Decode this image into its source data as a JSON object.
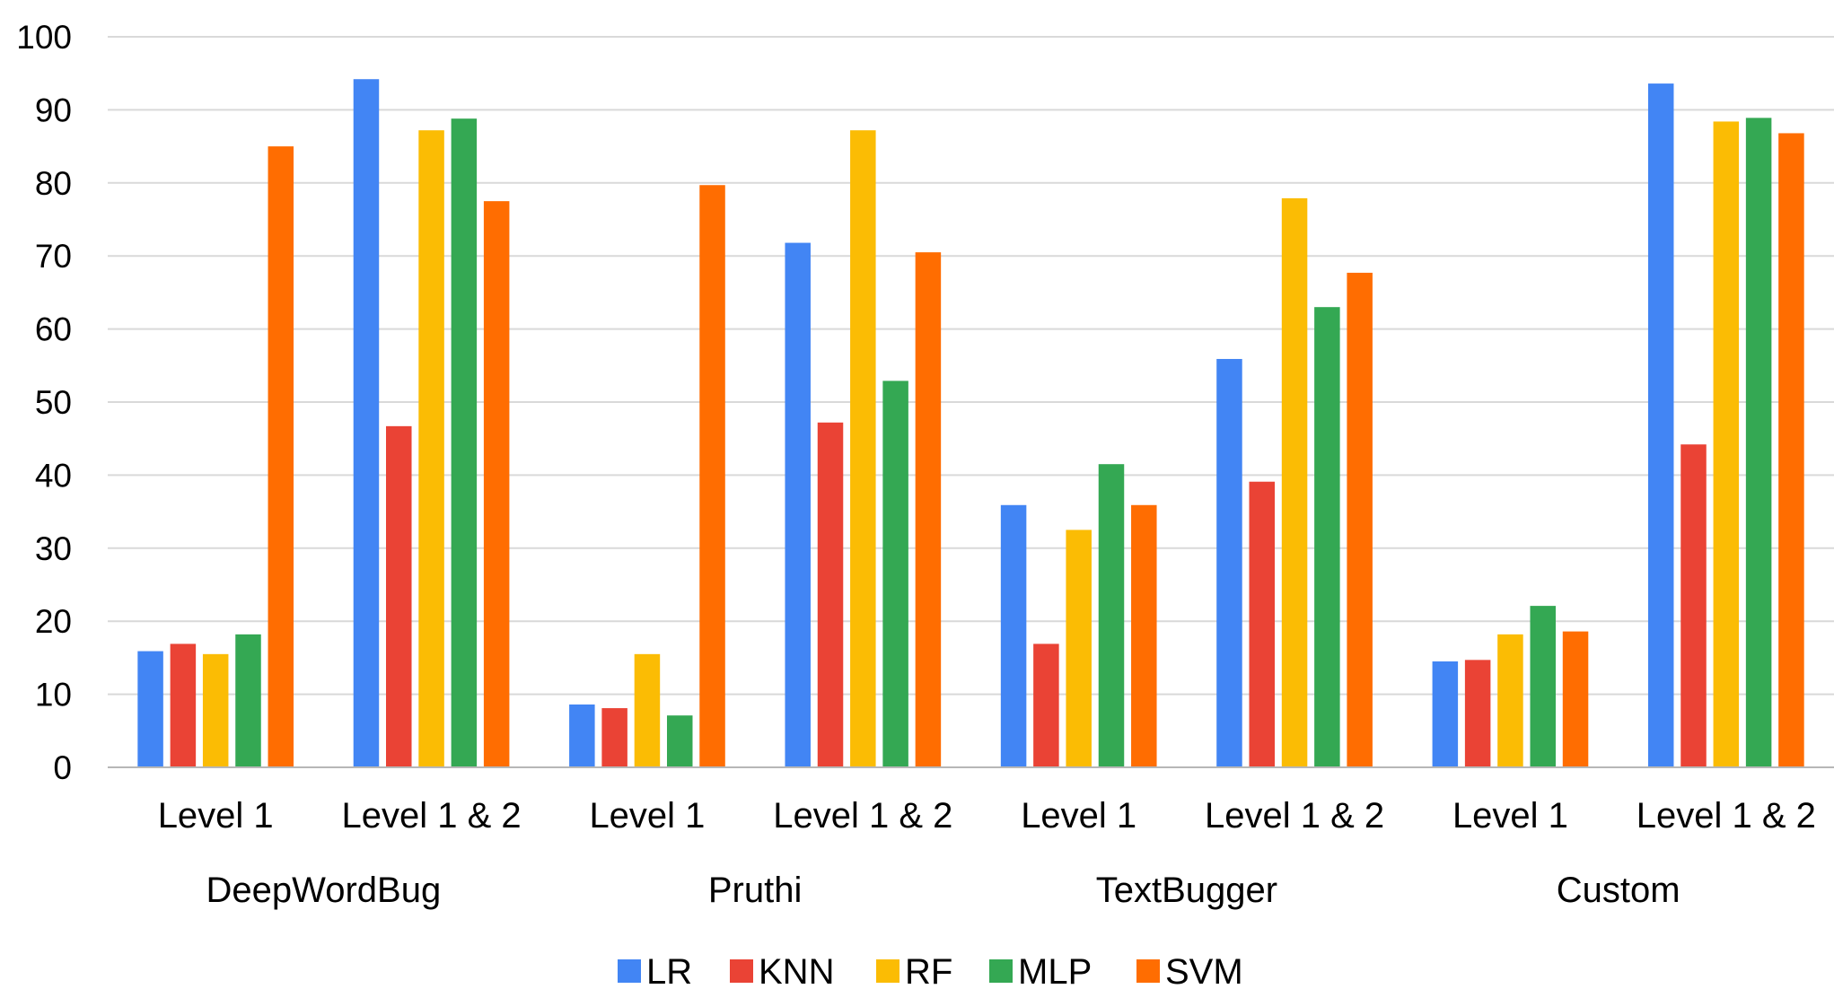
{
  "chart_data": {
    "type": "bar",
    "title": "",
    "xlabel": "",
    "ylabel": "",
    "ylim": [
      0,
      100
    ],
    "yticks": [
      0,
      10,
      20,
      30,
      40,
      50,
      60,
      70,
      80,
      90,
      100
    ],
    "grid": true,
    "legend_position": "bottom",
    "groups": [
      "DeepWordBug",
      "Pruthi",
      "TextBugger",
      "Custom"
    ],
    "categories": [
      "Level 1",
      "Level 1 & 2",
      "Level 1",
      "Level 1 & 2",
      "Level 1",
      "Level 1 & 2",
      "Level 1",
      "Level 1 & 2"
    ],
    "series": [
      {
        "name": "LR",
        "color": "#4285F4",
        "values": [
          15.9,
          94.2,
          8.6,
          71.8,
          35.9,
          55.9,
          14.5,
          93.6
        ]
      },
      {
        "name": "KNN",
        "color": "#EA4335",
        "values": [
          16.9,
          46.7,
          8.1,
          47.2,
          16.9,
          39.1,
          14.7,
          44.2
        ]
      },
      {
        "name": "RF",
        "color": "#FBBC04",
        "values": [
          15.5,
          87.2,
          15.5,
          87.2,
          32.5,
          77.9,
          18.2,
          88.4
        ]
      },
      {
        "name": "MLP",
        "color": "#34A853",
        "values": [
          18.2,
          88.8,
          7.1,
          52.9,
          41.5,
          63.0,
          22.1,
          88.9
        ]
      },
      {
        "name": "SVM",
        "color": "#FF6D01",
        "values": [
          85.0,
          77.5,
          79.7,
          70.5,
          35.9,
          67.7,
          18.6,
          86.8
        ]
      }
    ]
  }
}
